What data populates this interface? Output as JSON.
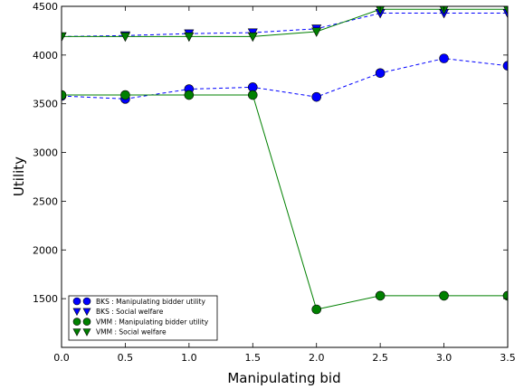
{
  "chart_data": {
    "type": "line",
    "title": "",
    "xlabel": "Manipulating bid",
    "ylabel": "Utility",
    "xlim": [
      0,
      3.5
    ],
    "ylim": [
      1000,
      4500
    ],
    "grid": false,
    "legend_position": "bottom-left",
    "x_ticks": [
      "0.0",
      "0.5",
      "1.0",
      "1.5",
      "2.0",
      "2.5",
      "3.0",
      "3.5"
    ],
    "y_ticks": [
      "1500",
      "2000",
      "2500",
      "3000",
      "3500",
      "4000",
      "4500"
    ],
    "x": [
      0.0,
      0.5,
      1.0,
      1.5,
      2.0,
      2.5,
      3.0,
      3.5
    ],
    "series": [
      {
        "name": "BKS : Manipulating bidder utility",
        "values": [
          3580,
          3550,
          3650,
          3670,
          3570,
          3815,
          3965,
          3890
        ],
        "color": "#0000ff",
        "marker": "circle",
        "line_style": "dashed"
      },
      {
        "name": "BKS : Social welfare",
        "values": [
          4190,
          4200,
          4220,
          4230,
          4270,
          4430,
          4430,
          4430
        ],
        "color": "#0000ff",
        "marker": "triangle-down",
        "line_style": "dashed"
      },
      {
        "name": "VMM : Manipulating bidder utility",
        "values": [
          3590,
          3590,
          3590,
          3590,
          1390,
          1530,
          1530,
          1530
        ],
        "color": "#008000",
        "marker": "circle",
        "line_style": "solid"
      },
      {
        "name": "VMM : Social welfare",
        "values": [
          4190,
          4190,
          4190,
          4190,
          4240,
          4470,
          4470,
          4470
        ],
        "color": "#008000",
        "marker": "triangle-down",
        "line_style": "solid"
      }
    ]
  }
}
